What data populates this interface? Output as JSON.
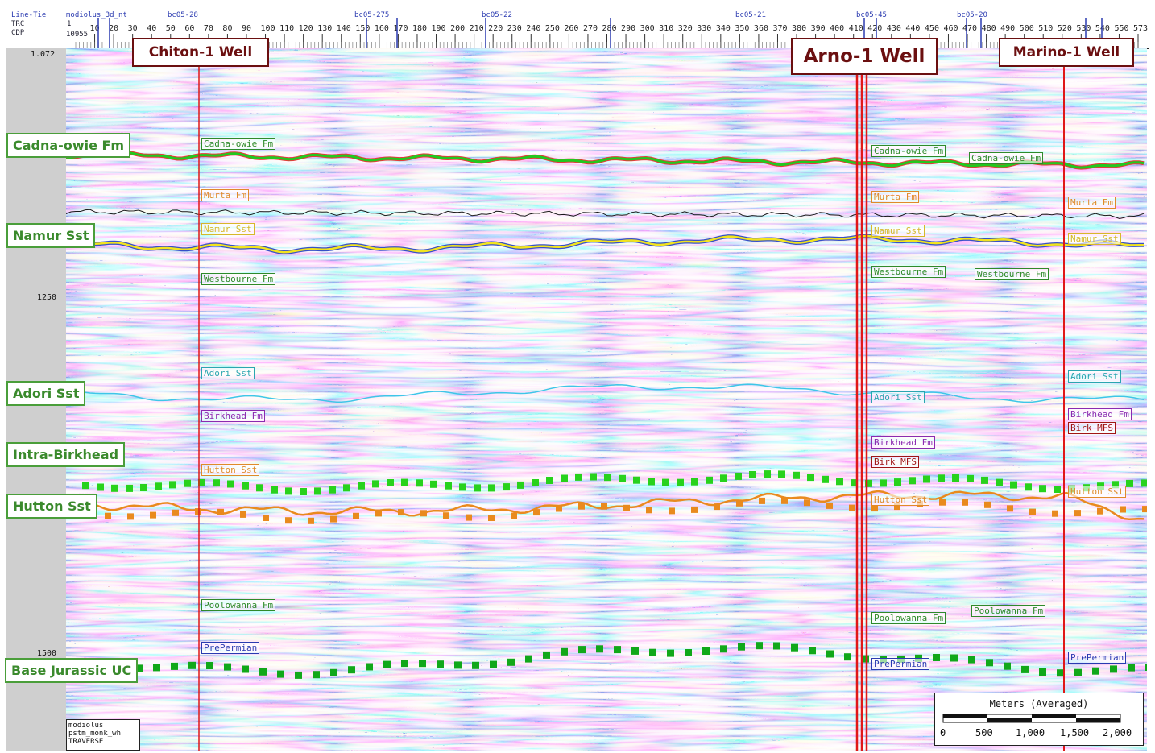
{
  "axis": {
    "row_labels": [
      "Line-Tie",
      "TRC",
      "CDP"
    ],
    "traverse_name": "modiolus_3d_nt",
    "ticks": [
      "10",
      "20",
      "30",
      "40",
      "50",
      "60",
      "70",
      "80",
      "90",
      "100",
      "110",
      "120",
      "130",
      "140",
      "150",
      "160",
      "170",
      "180",
      "190",
      "200",
      "210",
      "220",
      "230",
      "240",
      "250",
      "260",
      "270",
      "280",
      "290",
      "300",
      "310",
      "320",
      "330",
      "340",
      "350",
      "360",
      "370",
      "380",
      "390",
      "400",
      "410",
      "420",
      "430",
      "440",
      "450",
      "460",
      "470",
      "480",
      "490",
      "500",
      "510",
      "520",
      "530",
      "540",
      "550",
      "573"
    ],
    "first_tick": "1",
    "cdp_start": "10955",
    "line_ties": [
      "bc05-28",
      "bc05-275",
      "bc05-22",
      "bc05-21",
      "bc05-45",
      "bc05-20"
    ],
    "time_labels": [
      "1.072",
      "1250",
      "1500"
    ]
  },
  "wells": {
    "chiton": "Chiton-1 Well",
    "arno": "Arno-1 Well",
    "marino": "Marino-1 Well"
  },
  "horizons": {
    "cadna": "Cadna-owie Fm",
    "namur": "Namur Sst",
    "adori": "Adori Sst",
    "intra_birkhead": "Intra-Birkhead",
    "hutton": "Hutton Sst",
    "base_jurassic": "Base Jurassic UC"
  },
  "picks": {
    "chiton": [
      "Cadna-owie Fm",
      "Murta Fm",
      "Namur Sst",
      "Westbourne Fm",
      "Adori Sst",
      "Birkhead Fm",
      "Hutton Sst",
      "Poolowanna Fm",
      "PrePermian"
    ],
    "arno": [
      "Cadna-owie Fm",
      "Cadna-owie Fm",
      "Murta Fm",
      "Namur Sst",
      "Westbourne Fm",
      "Westbourne Fm",
      "Adori Sst",
      "Birkhead Fm",
      "Birk MFS",
      "Hutton Sst",
      "Poolowanna Fm",
      "Poolowanna Fm",
      "PrePermian"
    ],
    "marino": [
      "Murta Fm",
      "Namur Sst",
      "Adori Sst",
      "Birkhead Fm",
      "Birk MFS",
      "Hutton Sst",
      "PrePermian"
    ]
  },
  "scale": {
    "title": "Meters (Averaged)",
    "ticks": [
      "0",
      "500",
      "1,000",
      "1,500",
      "2,000"
    ]
  },
  "info": [
    "modiolus",
    "pstm_monk_wh",
    "TRAVERSE"
  ],
  "colors": {
    "well_line": "#e01818",
    "well_box": "#6b0f10",
    "cadna_horizon": "#22c81e",
    "murta_horizon": "#1a1a1a",
    "namur_horizon": "#f2e41e",
    "adori_horizon": "#3ec6e8",
    "hutton_horizon": "#e98a1e",
    "intra_birkhead": "#28d21c",
    "base_jurassic": "#11a81a",
    "seismic_red": "#e53a3a",
    "seismic_blue": "#3650c8"
  }
}
